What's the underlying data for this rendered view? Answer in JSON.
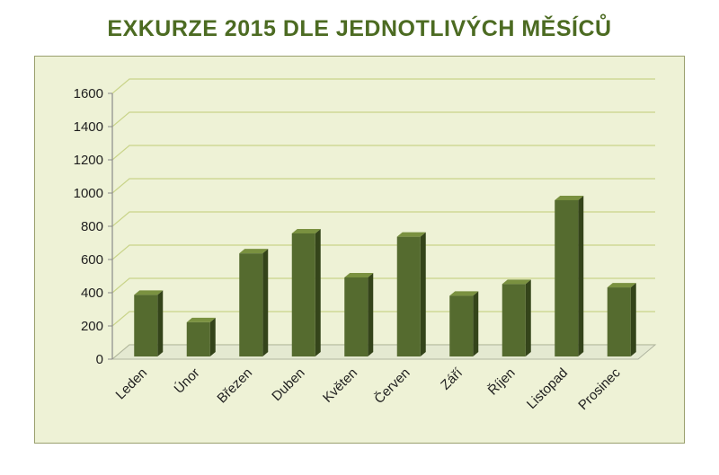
{
  "chart_data": {
    "type": "bar",
    "title": "EXKURZE 2015 DLE JEDNOTLIVÝCH MĚSÍCŮ",
    "xlabel": "",
    "ylabel": "",
    "categories": [
      "Leden",
      "Únor",
      "Březen",
      "Duben",
      "Květen",
      "Červen",
      "Září",
      "Říjen",
      "Listopad",
      "Prosinec"
    ],
    "values": [
      400,
      235,
      650,
      770,
      505,
      750,
      395,
      465,
      970,
      445
    ],
    "ylim": [
      0,
      1600
    ],
    "yticks": [
      "0",
      "200",
      "400",
      "600",
      "800",
      "1000",
      "1200",
      "1400",
      "1600"
    ],
    "grid": true,
    "legend": "none",
    "colors": {
      "bar_front": "#556b2f",
      "bar_side": "#34441a",
      "bar_top": "#7a9140",
      "title": "#4c6b22",
      "plot_bg": "#eef2d6",
      "gridline": "#c9d48a"
    }
  }
}
